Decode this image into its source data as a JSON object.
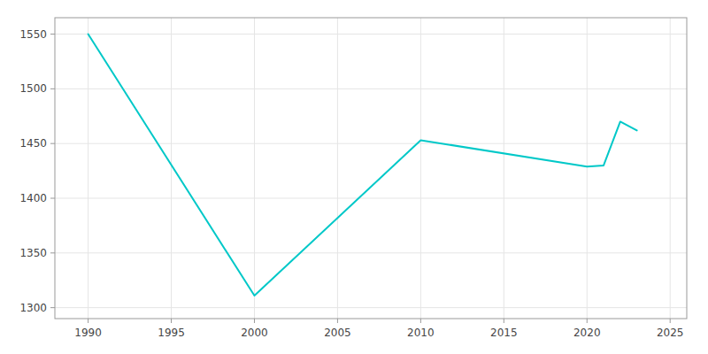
{
  "chart_data": {
    "type": "line",
    "x": [
      1990,
      2000,
      2010,
      2020,
      2021,
      2022,
      2023
    ],
    "values": [
      1550,
      1311,
      1453,
      1429,
      1430,
      1470,
      1462
    ],
    "color": "#00C8C8",
    "xlim": [
      1988,
      2026
    ],
    "ylim": [
      1290,
      1565
    ],
    "xticks": [
      1990,
      1995,
      2000,
      2005,
      2010,
      2015,
      2020,
      2025
    ],
    "yticks": [
      1300,
      1350,
      1400,
      1450,
      1500,
      1550
    ],
    "grid": true
  }
}
